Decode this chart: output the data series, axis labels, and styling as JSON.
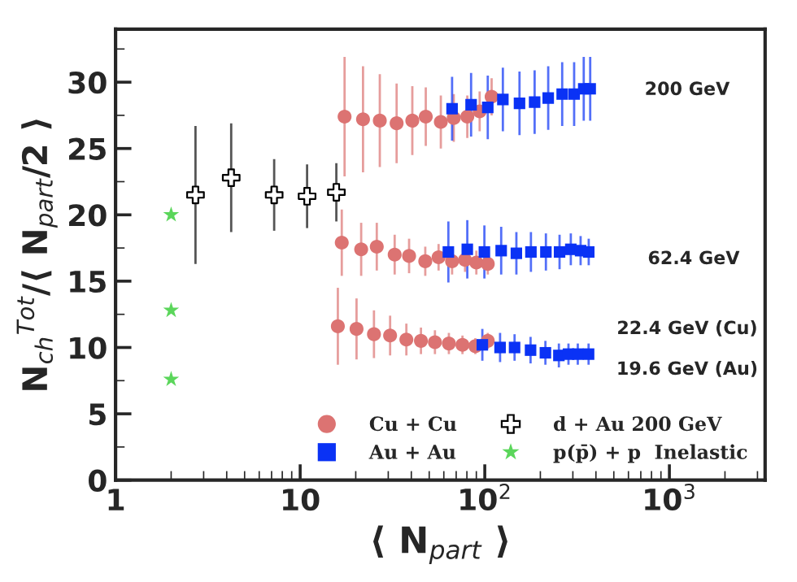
{
  "chart_data": {
    "type": "scatter",
    "xlabel": "⟨ N$_{part}$ ⟩",
    "ylabel": "N$_{ch}$$^{Tot}$/⟨ N$_{part}$/2 ⟩",
    "log": "x",
    "xlim": [
      1,
      3300
    ],
    "ylim": [
      0,
      34
    ],
    "xticks": [
      1,
      10,
      {
        "value": 100,
        "label": "10$^{2}$"
      },
      {
        "value": 1000,
        "label": "10$^{3}$"
      }
    ],
    "yticks": [
      0,
      5,
      10,
      15,
      20,
      25,
      30
    ],
    "grid": false,
    "legend": "bottom right",
    "series": [
      {
        "name": "Cu + Cu",
        "color": "#dc7372",
        "marker": "circle",
        "x": [
          17.4,
          21.9,
          27.0,
          33.3,
          40.5,
          47.9,
          57.8,
          67.9,
          80.4,
          93.8,
          108.9
        ],
        "values": [
          27.4,
          27.2,
          27.1,
          26.9,
          27.1,
          27.4,
          27.0,
          27.3,
          27.4,
          27.8,
          28.9
        ],
        "errors": [
          4.5,
          4.0,
          3.5,
          3.0,
          2.6,
          2.2,
          2.0,
          1.8,
          1.6,
          1.5,
          1.4
        ]
      },
      {
        "name": "Au + Au",
        "color": "#0a32f5",
        "marker": "square",
        "x": [
          66.5,
          84.3,
          103.8,
          125.3,
          154.2,
          186.2,
          220.6,
          262.6,
          304.8,
          343.6,
          372.4
        ],
        "values": [
          28.0,
          28.3,
          28.1,
          28.7,
          28.4,
          28.5,
          28.8,
          29.1,
          29.1,
          29.5,
          29.5
        ],
        "errors": [
          2.4,
          2.4,
          2.4,
          2.4,
          2.4,
          2.4,
          2.4,
          2.4,
          2.4,
          2.4,
          2.4
        ]
      },
      {
        "name": "d + Au 200 GeV",
        "color": "#ffffff",
        "marker": "cross",
        "x": [
          2.71,
          4.23,
          7.23,
          10.9,
          15.7
        ],
        "values": [
          21.5,
          22.8,
          21.5,
          21.4,
          21.7
        ],
        "errors": [
          5.2,
          4.1,
          2.7,
          2.4,
          2.2
        ]
      },
      {
        "name": "p(p̄) + p  Inelastic",
        "color": "#5bd65b",
        "marker": "star",
        "x": [
          2,
          2,
          2
        ],
        "values": [
          20.0,
          12.8,
          7.6
        ]
      },
      {
        "color": "#dc7372",
        "marker": "circle",
        "x": [
          16.8,
          21.4,
          26.0,
          32.5,
          38.9,
          47.6,
          56.2,
          66.5,
          78.2,
          90.0,
          103.8
        ],
        "values": [
          17.9,
          17.4,
          17.6,
          17.0,
          16.9,
          16.5,
          16.8,
          16.5,
          16.6,
          16.4,
          16.3
        ],
        "errors": [
          2.5,
          2.0,
          1.8,
          1.5,
          1.3,
          1.1,
          1.0,
          1.0,
          0.9,
          0.9,
          0.8
        ]
      },
      {
        "color": "#0a32f5",
        "marker": "square",
        "x": [
          63.5,
          80.4,
          99.5,
          122.7,
          148.3,
          177.8,
          214.3,
          254.1,
          292.4,
          330.4,
          365.6
        ],
        "values": [
          17.2,
          17.4,
          17.2,
          17.3,
          17.1,
          17.2,
          17.2,
          17.2,
          17.4,
          17.3,
          17.2
        ],
        "errors": [
          2.3,
          2.2,
          2.0,
          1.8,
          1.6,
          1.5,
          1.4,
          1.3,
          1.2,
          1.1,
          1.0
        ]
      },
      {
        "color": "#dc7372",
        "marker": "circle",
        "x": [
          16.0,
          20.2,
          25.1,
          30.7,
          37.6,
          45.1,
          53.7,
          63.9,
          75.7,
          88.9,
          103.8
        ],
        "values": [
          11.6,
          11.4,
          11.0,
          10.9,
          10.6,
          10.5,
          10.4,
          10.3,
          10.2,
          10.1,
          10.5
        ],
        "errors": [
          2.9,
          2.3,
          1.8,
          1.5,
          1.2,
          1.0,
          0.9,
          0.8,
          0.7,
          0.6,
          0.6
        ]
      },
      {
        "color": "#0a32f5",
        "marker": "square",
        "x": [
          97.0,
          121,
          145,
          177,
          213,
          252,
          284,
          319,
          365
        ],
        "values": [
          10.2,
          10.0,
          10.0,
          9.8,
          9.6,
          9.4,
          9.5,
          9.5,
          9.5
        ],
        "errors": [
          1.2,
          1.1,
          1.0,
          1.0,
          0.9,
          0.9,
          0.8,
          0.8,
          0.8
        ]
      }
    ],
    "annotations": [
      "200 GeV",
      "62.4 GeV",
      "22.4 GeV (Cu)",
      "19.6 GeV (Au)"
    ]
  }
}
